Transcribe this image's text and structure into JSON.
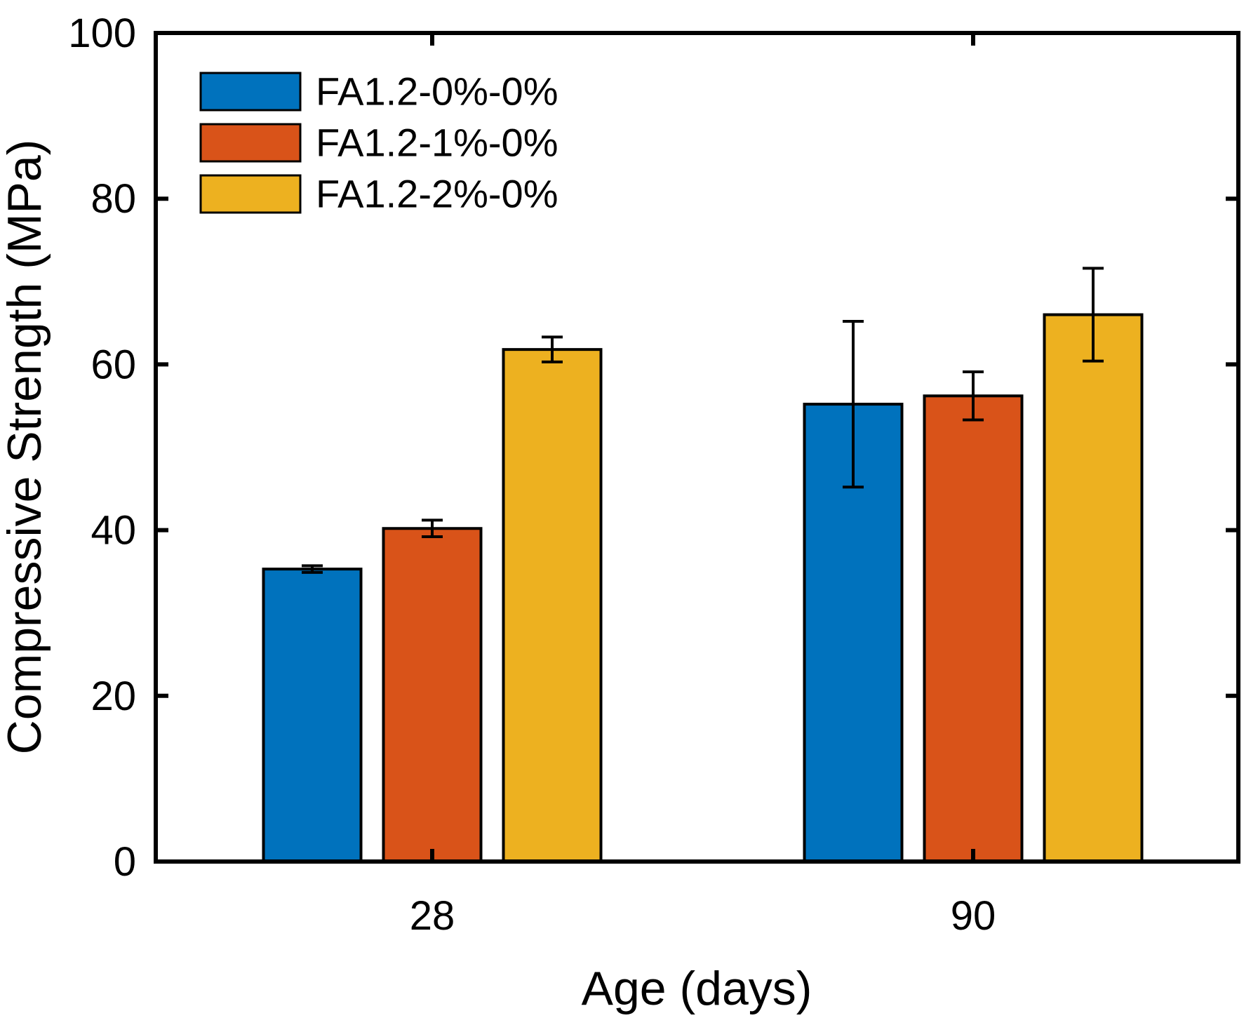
{
  "figure": {
    "background": "#ffffff",
    "axis_color": "#000000"
  },
  "chart_data": {
    "type": "bar",
    "title": "",
    "xlabel": "Age (days)",
    "ylabel": "Compressive Strength (MPa)",
    "categories": [
      "28",
      "90"
    ],
    "ylim": [
      0,
      100
    ],
    "yticks": [
      0,
      20,
      40,
      60,
      80,
      100
    ],
    "grid": false,
    "legend_position": "top-left-inside",
    "legend_frame": false,
    "series": [
      {
        "name": "FA1.2-0%-0%",
        "color": "#0072BD",
        "values": [
          35.3,
          55.2
        ],
        "errors": [
          0.4,
          10.0
        ]
      },
      {
        "name": "FA1.2-1%-0%",
        "color": "#D95319",
        "values": [
          40.2,
          56.2
        ],
        "errors": [
          1.0,
          2.9
        ]
      },
      {
        "name": "FA1.2-2%-0%",
        "color": "#EDB120",
        "values": [
          61.8,
          66.0
        ],
        "errors": [
          1.5,
          5.6
        ]
      }
    ]
  }
}
